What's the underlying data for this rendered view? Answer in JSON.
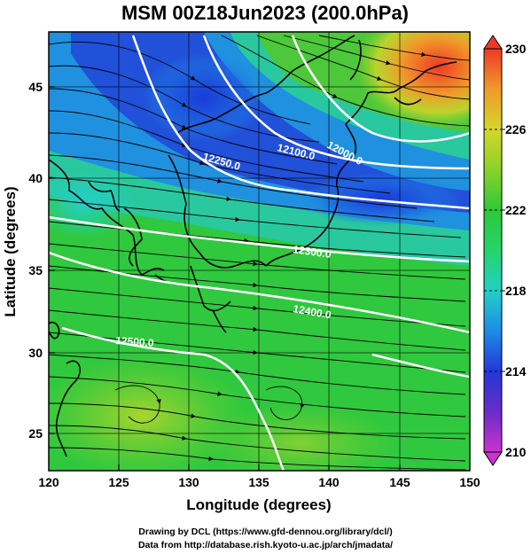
{
  "title": "MSM 00Z18Jun2023 (200.0hPa)",
  "x_axis": {
    "label": "Longitude (degrees)",
    "ticks": [
      "120",
      "125",
      "130",
      "135",
      "140",
      "145",
      "150"
    ],
    "range": [
      120,
      150
    ]
  },
  "y_axis": {
    "label": "Latitude  (degrees)",
    "ticks": [
      "25",
      "30",
      "35",
      "40",
      "45"
    ],
    "range": [
      22.5,
      47.5
    ]
  },
  "colorbar": {
    "ticks": [
      "230",
      "226",
      "222",
      "218",
      "214",
      "210"
    ],
    "range": [
      210,
      230
    ],
    "colors": [
      "#cc33cc",
      "#6a2cc8",
      "#2238d8",
      "#1e8be6",
      "#22d0c8",
      "#26d468",
      "#2ec83a",
      "#8ad22a",
      "#d6d62a",
      "#f09a2a",
      "#ee3a26"
    ]
  },
  "contours": [
    {
      "label": "12000.0"
    },
    {
      "label": "12100.0"
    },
    {
      "label": "12250.0"
    },
    {
      "label": "12300.0"
    },
    {
      "label": "12400.0"
    },
    {
      "label": "12500.0"
    }
  ],
  "credits": {
    "line1": "Drawing by DCL (https://www.gfd-dennou.org/library/dcl/)",
    "line2": "Data from http://database.rish.kyoto-u.ac.jp/arch/jmadata/"
  },
  "chart_data": {
    "type": "heatmap",
    "title": "MSM 00Z18Jun2023 (200.0hPa)",
    "xlabel": "Longitude (degrees)",
    "ylabel": "Latitude  (degrees)",
    "xlim": [
      120,
      150
    ],
    "ylim": [
      22.5,
      47.5
    ],
    "colorbar_range": [
      210,
      230
    ],
    "grid": true,
    "contour_levels": [
      12000,
      12100,
      12250,
      12300,
      12400,
      12500
    ],
    "overlay": "streamlines"
  }
}
